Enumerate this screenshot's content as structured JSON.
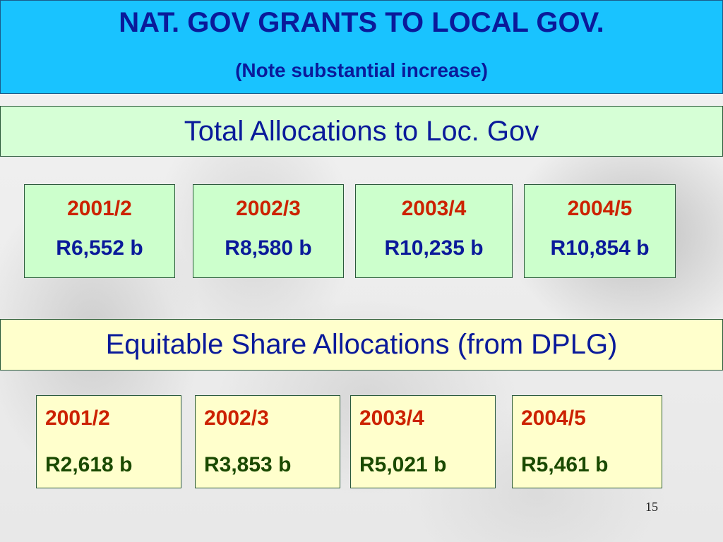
{
  "title": "NAT. GOV GRANTS TO LOCAL GOV.",
  "subtitle": "(Note substantial increase)",
  "total_section": {
    "heading": "Total Allocations to Loc. Gov",
    "items": [
      {
        "year": "2001/2",
        "amount": "R6,552 b"
      },
      {
        "year": "2002/3",
        "amount": "R8,580 b"
      },
      {
        "year": "2003/4",
        "amount": "R10,235 b"
      },
      {
        "year": "2004/5",
        "amount": "R10,854 b"
      }
    ]
  },
  "equitable_section": {
    "heading": "Equitable Share Allocations (from DPLG)",
    "items": [
      {
        "year": "2001/2",
        "amount": "R2,618 b"
      },
      {
        "year": "2002/3",
        "amount": "R3,853 b"
      },
      {
        "year": "2003/4",
        "amount": "R5,021 b"
      },
      {
        "year": "2004/5",
        "amount": "R5,461 b"
      }
    ]
  },
  "page_number": "15",
  "colors": {
    "title_bg": "#19c3ff",
    "title_text": "#0a1a9a",
    "green_panel": "#ccffcc",
    "yellow_panel": "#ffffcc",
    "year_text": "#cc2200"
  }
}
